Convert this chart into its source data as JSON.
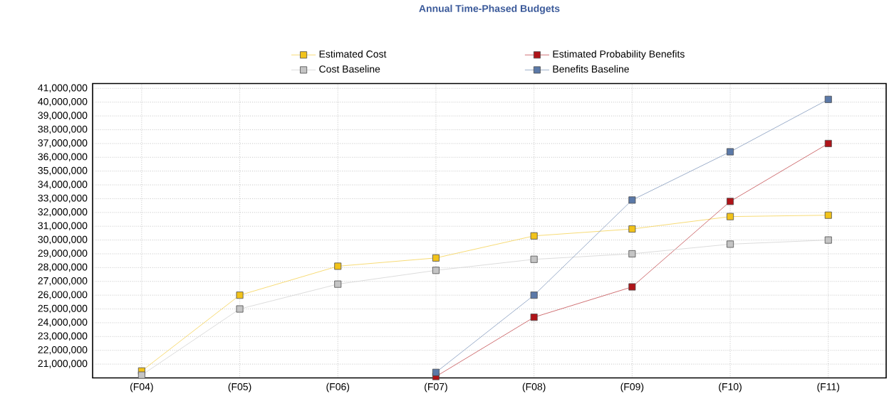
{
  "chart_data": {
    "type": "line",
    "title": "Annual Time-Phased Budgets",
    "categories": [
      "(F04)",
      "(F05)",
      "(F06)",
      "(F07)",
      "(F08)",
      "(F09)",
      "(F10)",
      "(F11)"
    ],
    "series": [
      {
        "name": "Estimated Cost",
        "color": "#f2c31a",
        "values": [
          20500000.0,
          26000000.0,
          28100000.0,
          28700000.0,
          30300000.0,
          30800000.0,
          31700000.0,
          31800000.0
        ]
      },
      {
        "name": "Estimated Probability Benefits",
        "color": "#b01318",
        "values": [
          null,
          null,
          null,
          20100000.0,
          24400000.0,
          26600000.0,
          32800000.0,
          37000000.0
        ]
      },
      {
        "name": "Cost Baseline",
        "color": "#c4c4c4",
        "values": [
          20200000.0,
          25000000.0,
          26800000.0,
          27800000.0,
          28600000.0,
          29000000.0,
          29700000.0,
          30000000.0
        ]
      },
      {
        "name": "Benefits Baseline",
        "color": "#5b79a8",
        "values": [
          null,
          null,
          null,
          20400000.0,
          26000000.0,
          32900000.0,
          36400000.0,
          40200000.0
        ]
      }
    ],
    "ylim": [
      20000000,
      41350000
    ],
    "yticks": [
      {
        "value": 21000000,
        "label": "21,000,000"
      },
      {
        "value": 22000000,
        "label": "22,000,000"
      },
      {
        "value": 23000000,
        "label": "23,000,000"
      },
      {
        "value": 24000000,
        "label": "24,000,000"
      },
      {
        "value": 25000000,
        "label": "25,000,000"
      },
      {
        "value": 26000000,
        "label": "26,000,000"
      },
      {
        "value": 27000000,
        "label": "27,000,000"
      },
      {
        "value": 28000000,
        "label": "28,000,000"
      },
      {
        "value": 29000000,
        "label": "29,000,000"
      },
      {
        "value": 30000000,
        "label": "30,000,000"
      },
      {
        "value": 31000000,
        "label": "31,000,000"
      },
      {
        "value": 32000000,
        "label": "32,000,000"
      },
      {
        "value": 33000000,
        "label": "33,000,000"
      },
      {
        "value": 34000000,
        "label": "34,000,000"
      },
      {
        "value": 35000000,
        "label": "35,000,000"
      },
      {
        "value": 36000000,
        "label": "36,000,000"
      },
      {
        "value": 37000000,
        "label": "37,000,000"
      },
      {
        "value": 38000000,
        "label": "38,000,000"
      },
      {
        "value": 39000000,
        "label": "39,000,000"
      },
      {
        "value": 40000000,
        "label": "40,000,000"
      },
      {
        "value": 41000000,
        "label": "41,000,000"
      }
    ],
    "grid": true,
    "legend": "top",
    "marker": "square",
    "line_style": "solid"
  }
}
